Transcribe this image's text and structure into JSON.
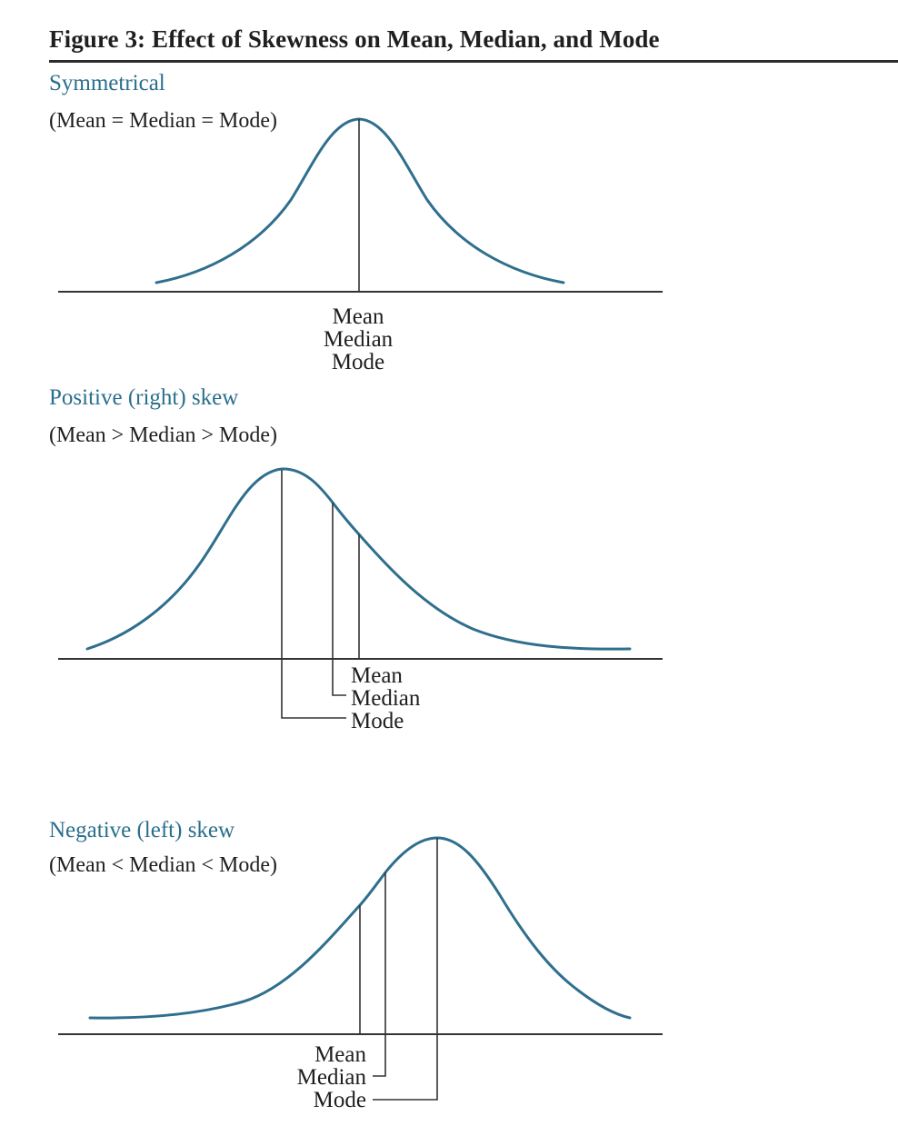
{
  "figure": {
    "title": "Figure 3: Effect of Skewness on Mean, Median, and Mode"
  },
  "colors": {
    "curve": "#2f6f8d",
    "heading": "#2a6f8c",
    "axis": "#333333"
  },
  "panels": {
    "symmetrical": {
      "heading": "Symmetrical",
      "caption": "(Mean = Median = Mode)",
      "labels": {
        "mean": "Mean",
        "median": "Median",
        "mode": "Mode"
      }
    },
    "positive": {
      "heading": "Positive (right) skew",
      "caption": "(Mean > Median > Mode)",
      "labels": {
        "mean": "Mean",
        "median": "Median",
        "mode": "Mode"
      }
    },
    "negative": {
      "heading": "Negative (left) skew",
      "caption": "(Mean < Median < Mode)",
      "labels": {
        "mean": "Mean",
        "median": "Median",
        "mode": "Mode"
      }
    }
  }
}
